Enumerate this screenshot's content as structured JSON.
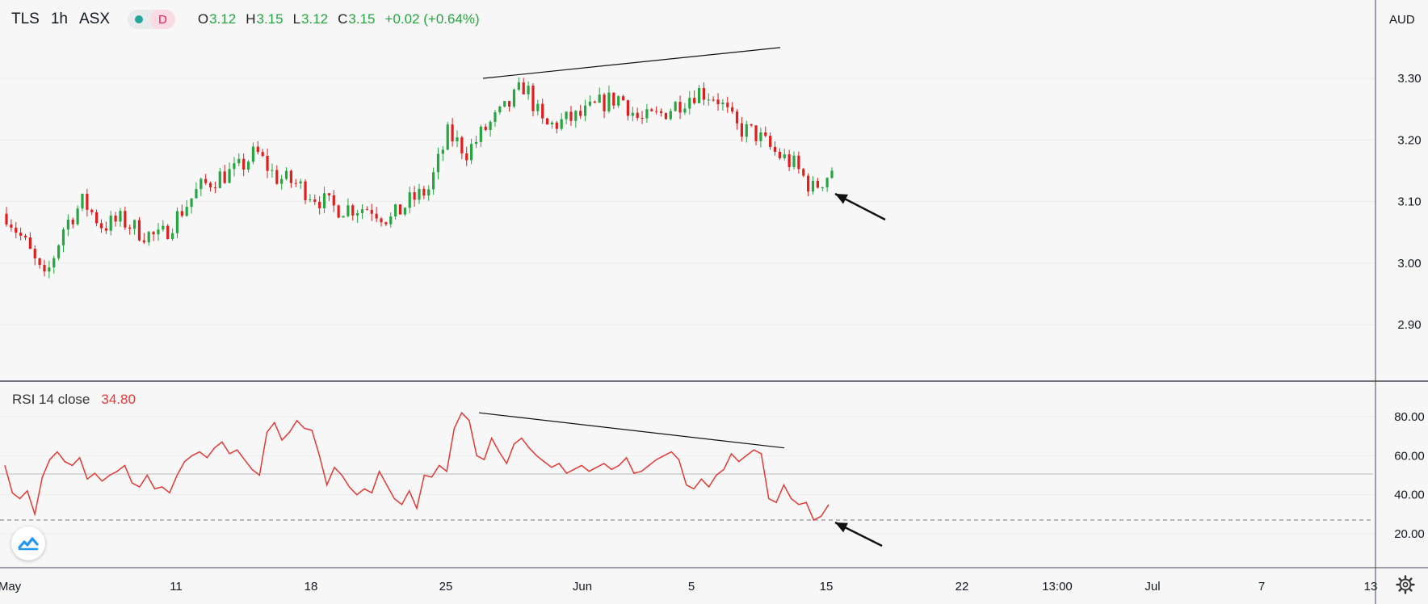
{
  "header": {
    "symbol": "TLS",
    "interval": "1h",
    "exchange": "ASX",
    "mode_badge": "D",
    "ohlc": {
      "open_label": "O",
      "open": "3.12",
      "high_label": "H",
      "high": "3.15",
      "low_label": "L",
      "low": "3.12",
      "close_label": "C",
      "close": "3.15",
      "change": "+0.02 (+0.64%)"
    }
  },
  "currency": "AUD",
  "rsi_legend": {
    "label": "RSI 14 close",
    "value": "34.80"
  },
  "icons": {
    "logo": "tradingview-logo-icon",
    "settings": "gear-icon",
    "status": "market-status-dot-icon"
  },
  "colors": {
    "up": "#26a641",
    "down": "#e01e1e",
    "rsi": "#e53935",
    "text": "#131722",
    "background": "#f7f7f7"
  },
  "chart_data": [
    {
      "type": "candlestick",
      "ylim": [
        2.82,
        3.36
      ],
      "y_ticks": [
        "3.30",
        "3.20",
        "3.10",
        "3.00",
        "2.90"
      ],
      "x_ticks": [
        "May",
        "11",
        "18",
        "25",
        "Jun",
        "5",
        "15",
        "22",
        "13:00",
        "Jul",
        "7",
        "13"
      ],
      "price_path": [
        [
          "May",
          3.08
        ],
        [
          "4",
          3.03
        ],
        [
          "5",
          2.97
        ],
        [
          "6",
          3.06
        ],
        [
          "7",
          3.1
        ],
        [
          "8",
          3.06
        ],
        [
          "9",
          3.07
        ],
        [
          "11",
          3.05
        ],
        [
          "12",
          3.04
        ],
        [
          "13",
          3.08
        ],
        [
          "14",
          3.12
        ],
        [
          "15",
          3.14
        ],
        [
          "16",
          3.15
        ],
        [
          "17",
          3.18
        ],
        [
          "18",
          3.14
        ],
        [
          "19",
          3.13
        ],
        [
          "20",
          3.11
        ],
        [
          "21",
          3.09
        ],
        [
          "22",
          3.09
        ],
        [
          "23",
          3.09
        ],
        [
          "24",
          3.07
        ],
        [
          "25",
          3.1
        ],
        [
          "26",
          3.12
        ],
        [
          "27",
          3.21
        ],
        [
          "28",
          3.18
        ],
        [
          "29",
          3.22
        ],
        [
          "30",
          3.25
        ],
        [
          "Jun",
          3.29
        ],
        [
          "1",
          3.22
        ],
        [
          "2",
          3.23
        ],
        [
          "3",
          3.24
        ],
        [
          "4",
          3.26
        ],
        [
          "5",
          3.27
        ],
        [
          "6",
          3.23
        ],
        [
          "7",
          3.24
        ],
        [
          "8",
          3.26
        ],
        [
          "9",
          3.28
        ],
        [
          "10",
          3.27
        ],
        [
          "11",
          3.22
        ],
        [
          "12",
          3.21
        ],
        [
          "13",
          3.18
        ],
        [
          "14",
          3.16
        ],
        [
          "15",
          3.12
        ],
        [
          "16",
          3.15
        ]
      ],
      "trendline": {
        "from": [
          3.3,
          "May 27"
        ],
        "to": [
          3.35,
          "Jun 10"
        ]
      },
      "arrow": "pointing to the last candles"
    },
    {
      "type": "line",
      "name": "RSI 14 close",
      "ylim": [
        8,
        90
      ],
      "y_ticks": [
        "80.00",
        "60.00",
        "40.00",
        "20.00"
      ],
      "midline": 50,
      "oversold_dashed": 27,
      "values": [
        55,
        41,
        38,
        42,
        30,
        49,
        58,
        62,
        57,
        55,
        59,
        48,
        51,
        47,
        50,
        52,
        55,
        46,
        44,
        50,
        43,
        44,
        41,
        50,
        57,
        60,
        62,
        59,
        64,
        67,
        61,
        63,
        58,
        53,
        50,
        72,
        77,
        68,
        72,
        78,
        74,
        73,
        60,
        45,
        54,
        50,
        44,
        40,
        43,
        41,
        52,
        45,
        38,
        35,
        42,
        33,
        50,
        49,
        55,
        52,
        74,
        82,
        78,
        60,
        58,
        69,
        62,
        56,
        66,
        69,
        64,
        60,
        57,
        54,
        56,
        51,
        53,
        55,
        52,
        54,
        56,
        53,
        55,
        59,
        51,
        52,
        55,
        58,
        60,
        62,
        58,
        45,
        43,
        48,
        44,
        50,
        53,
        61,
        57,
        60,
        63,
        61,
        38,
        36,
        45,
        38,
        35,
        36,
        27,
        29,
        35
      ],
      "trendline": {
        "from": [
          82,
          "May 27"
        ],
        "to": [
          64,
          "Jun 10"
        ]
      },
      "arrow": "pointing to the last RSI low"
    }
  ]
}
